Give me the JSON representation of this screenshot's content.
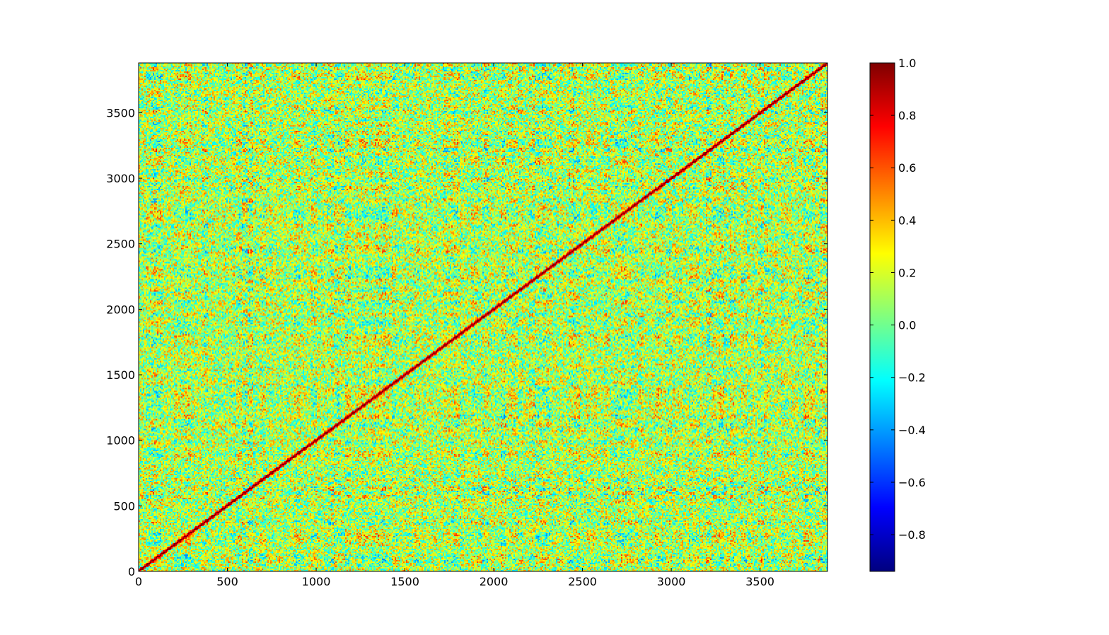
{
  "chart_data": {
    "type": "heatmap",
    "title": "",
    "xlabel": "",
    "ylabel": "",
    "n": 3880,
    "xlim": [
      0,
      3880
    ],
    "ylim": [
      0,
      3880
    ],
    "x_ticks": [
      0,
      500,
      1000,
      1500,
      2000,
      2500,
      3000,
      3500
    ],
    "y_ticks": [
      0,
      500,
      1000,
      1500,
      2000,
      2500,
      3000,
      3500
    ],
    "x_tick_labels": [
      "0",
      "500",
      "1000",
      "1500",
      "2000",
      "2500",
      "3000",
      "3500"
    ],
    "y_tick_labels": [
      "0",
      "500",
      "1000",
      "1500",
      "2000",
      "2500",
      "3000",
      "3500"
    ],
    "grid": false,
    "colormap": "jet",
    "colorbar": {
      "vmin": -0.94,
      "vmax": 1.0,
      "ticks": [
        -0.8,
        -0.6,
        -0.4,
        -0.2,
        0.0,
        0.2,
        0.4,
        0.6,
        0.8,
        1.0
      ],
      "tick_labels": [
        "−0.8",
        "−0.6",
        "−0.4",
        "−0.2",
        "0.0",
        "0.2",
        "0.4",
        "0.6",
        "0.8",
        "1.0"
      ],
      "placement": "right"
    },
    "diagonal_value": 1.0,
    "typical_range": [
      -0.4,
      0.6
    ],
    "description_of_values": "symmetric correlation matrix; diagonal equals 1.0"
  }
}
